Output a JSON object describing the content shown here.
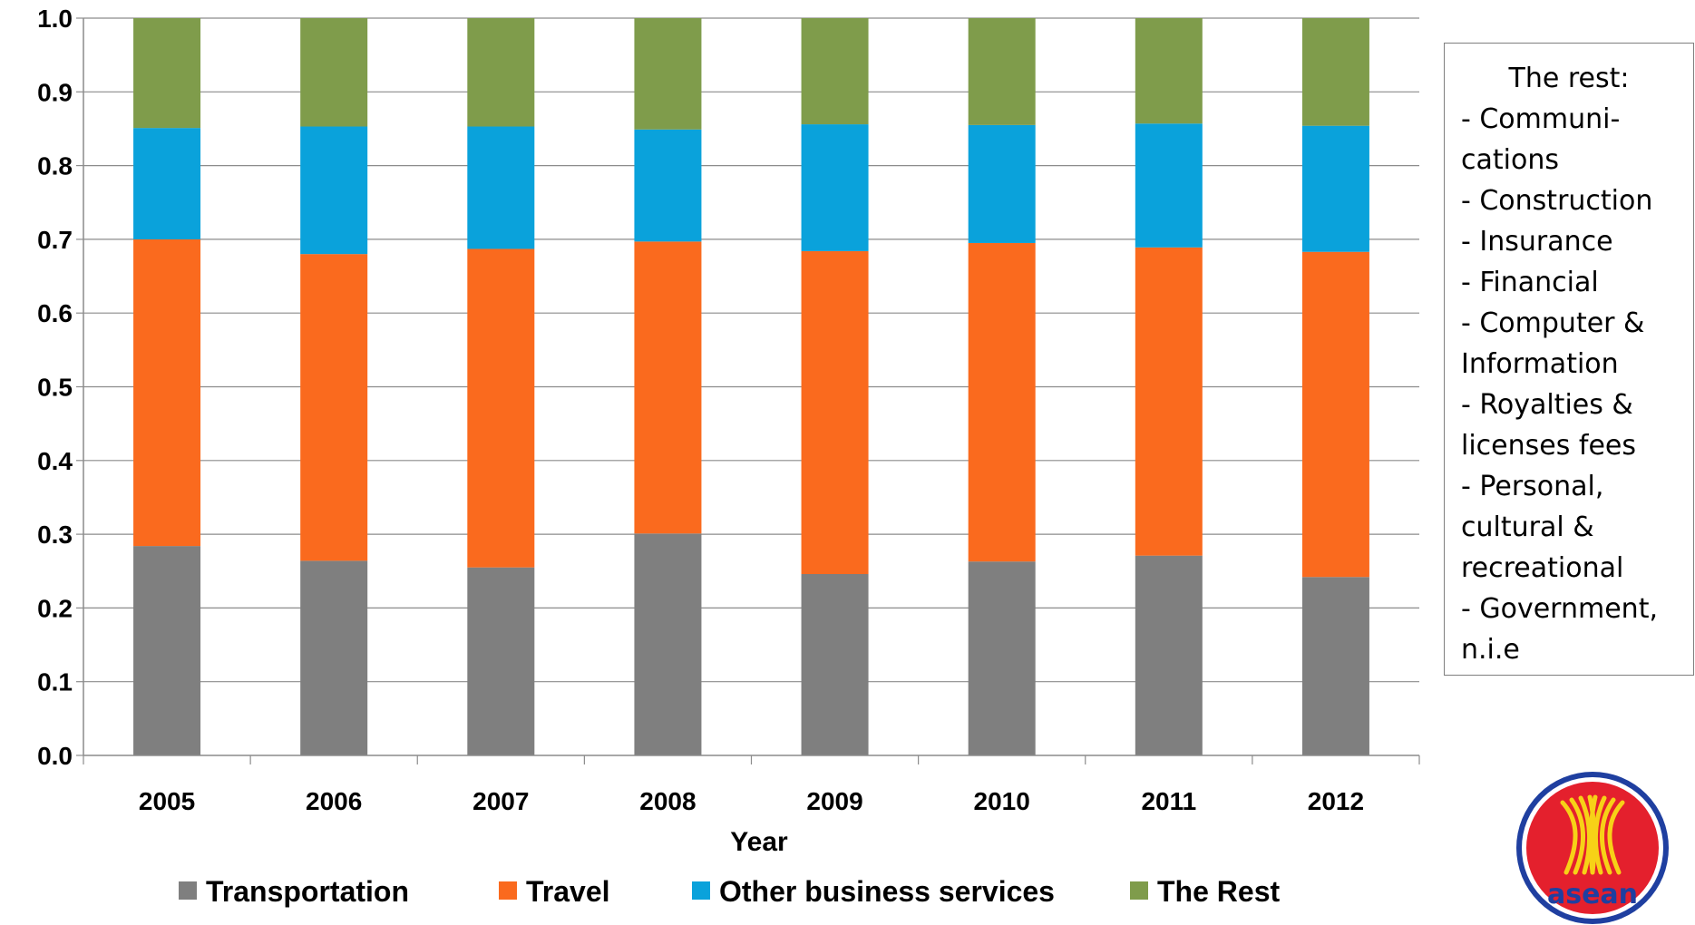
{
  "chart_data": {
    "type": "bar",
    "stacked": true,
    "title": "",
    "xlabel": "Year",
    "ylabel": "",
    "ylim": [
      0,
      1.0
    ],
    "yticks": [
      "0.0",
      "0.1",
      "0.2",
      "0.3",
      "0.4",
      "0.5",
      "0.6",
      "0.7",
      "0.8",
      "0.9",
      "1.0"
    ],
    "grid": true,
    "legend_position": "bottom",
    "categories": [
      "2005",
      "2006",
      "2007",
      "2008",
      "2009",
      "2010",
      "2011",
      "2012"
    ],
    "series": [
      {
        "name": "Transportation",
        "color": "#7f7f7f",
        "values": [
          0.284,
          0.264,
          0.255,
          0.301,
          0.246,
          0.263,
          0.271,
          0.242
        ]
      },
      {
        "name": "Travel",
        "color": "#fa6a1e",
        "values": [
          0.416,
          0.416,
          0.432,
          0.396,
          0.438,
          0.432,
          0.418,
          0.441
        ]
      },
      {
        "name": "Other business services",
        "color": "#0aa2db",
        "values": [
          0.151,
          0.173,
          0.166,
          0.152,
          0.172,
          0.16,
          0.168,
          0.171
        ]
      },
      {
        "name": "The Rest",
        "color": "#7f9c4b",
        "values": [
          0.149,
          0.147,
          0.147,
          0.151,
          0.144,
          0.145,
          0.143,
          0.146
        ]
      }
    ]
  },
  "note": {
    "title": "The rest:",
    "lines": [
      "- Communi-",
      "cations",
      "- Construction",
      "- Insurance",
      "- Financial",
      "- Computer &",
      "Information",
      "- Royalties &",
      "licenses fees",
      "- Personal,",
      "cultural &",
      "recreational",
      "- Government,",
      "n.i.e"
    ]
  },
  "logo": {
    "text": "asean",
    "colors": {
      "outer": "#1f3fa0",
      "ring": "#ffffff",
      "red": "#e4202d",
      "yellow": "#f7d117"
    }
  }
}
